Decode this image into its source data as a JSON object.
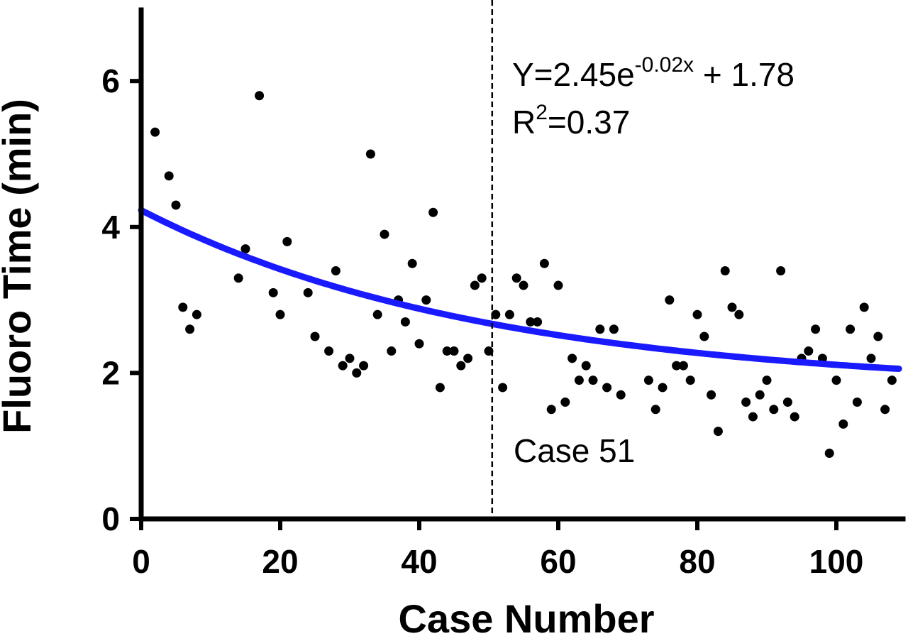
{
  "chart_data": {
    "type": "scatter",
    "xlabel": "Case Number",
    "ylabel": "Fluoro Time (min)",
    "xlim": [
      0,
      109
    ],
    "ylim": [
      0,
      7
    ],
    "x_ticks": [
      "0",
      "20",
      "40",
      "60",
      "80",
      "100"
    ],
    "y_ticks": [
      "0",
      "2",
      "4",
      "6"
    ],
    "grid": false,
    "points": [
      [
        2,
        5.3
      ],
      [
        4,
        4.7
      ],
      [
        5,
        4.3
      ],
      [
        6,
        2.9
      ],
      [
        7,
        2.6
      ],
      [
        8,
        2.8
      ],
      [
        14,
        3.3
      ],
      [
        15,
        3.7
      ],
      [
        17,
        5.8
      ],
      [
        19,
        3.1
      ],
      [
        20,
        2.8
      ],
      [
        21,
        3.8
      ],
      [
        24,
        3.1
      ],
      [
        25,
        2.5
      ],
      [
        27,
        2.3
      ],
      [
        28,
        3.4
      ],
      [
        29,
        2.1
      ],
      [
        30,
        2.2
      ],
      [
        31,
        2.0
      ],
      [
        32,
        2.1
      ],
      [
        33,
        5.0
      ],
      [
        34,
        2.8
      ],
      [
        35,
        3.9
      ],
      [
        36,
        2.3
      ],
      [
        37,
        3.0
      ],
      [
        38,
        2.7
      ],
      [
        39,
        3.5
      ],
      [
        40,
        2.4
      ],
      [
        41,
        3.0
      ],
      [
        42,
        4.2
      ],
      [
        43,
        1.8
      ],
      [
        44,
        2.3
      ],
      [
        45,
        2.3
      ],
      [
        46,
        2.1
      ],
      [
        47,
        2.2
      ],
      [
        48,
        3.2
      ],
      [
        49,
        3.3
      ],
      [
        50,
        2.3
      ],
      [
        51,
        2.8
      ],
      [
        52,
        1.8
      ],
      [
        53,
        2.8
      ],
      [
        54,
        3.3
      ],
      [
        55,
        3.2
      ],
      [
        56,
        2.7
      ],
      [
        57,
        2.7
      ],
      [
        58,
        3.5
      ],
      [
        59,
        1.5
      ],
      [
        60,
        3.2
      ],
      [
        61,
        1.6
      ],
      [
        62,
        2.2
      ],
      [
        63,
        1.9
      ],
      [
        64,
        2.1
      ],
      [
        65,
        1.9
      ],
      [
        66,
        2.6
      ],
      [
        67,
        1.8
      ],
      [
        68,
        2.6
      ],
      [
        69,
        1.7
      ],
      [
        73,
        1.9
      ],
      [
        74,
        1.5
      ],
      [
        75,
        1.8
      ],
      [
        76,
        3.0
      ],
      [
        77,
        2.1
      ],
      [
        78,
        2.1
      ],
      [
        79,
        1.9
      ],
      [
        80,
        2.8
      ],
      [
        81,
        2.5
      ],
      [
        82,
        1.7
      ],
      [
        83,
        1.2
      ],
      [
        84,
        3.4
      ],
      [
        85,
        2.9
      ],
      [
        86,
        2.8
      ],
      [
        87,
        1.6
      ],
      [
        88,
        1.4
      ],
      [
        89,
        1.7
      ],
      [
        90,
        1.9
      ],
      [
        91,
        1.5
      ],
      [
        92,
        3.4
      ],
      [
        93,
        1.6
      ],
      [
        94,
        1.4
      ],
      [
        95,
        2.2
      ],
      [
        96,
        2.3
      ],
      [
        97,
        2.6
      ],
      [
        98,
        2.2
      ],
      [
        99,
        0.9
      ],
      [
        100,
        1.9
      ],
      [
        101,
        1.3
      ],
      [
        102,
        2.6
      ],
      [
        103,
        1.6
      ],
      [
        104,
        2.9
      ],
      [
        105,
        2.2
      ],
      [
        106,
        2.5
      ],
      [
        107,
        1.5
      ],
      [
        108,
        1.9
      ]
    ],
    "fit": {
      "a": 2.45,
      "b": -0.02,
      "c": 1.78
    },
    "fit_color": "#1a1aff",
    "divider_x": 51,
    "annotations": {
      "equation_main": "Y=2.45e",
      "equation_exp": "-0.02x",
      "equation_tail": " + 1.78",
      "r2_prefix": "R",
      "r2_sup": "2",
      "r2_value": "=0.37",
      "divider_label": "Case 51"
    }
  }
}
